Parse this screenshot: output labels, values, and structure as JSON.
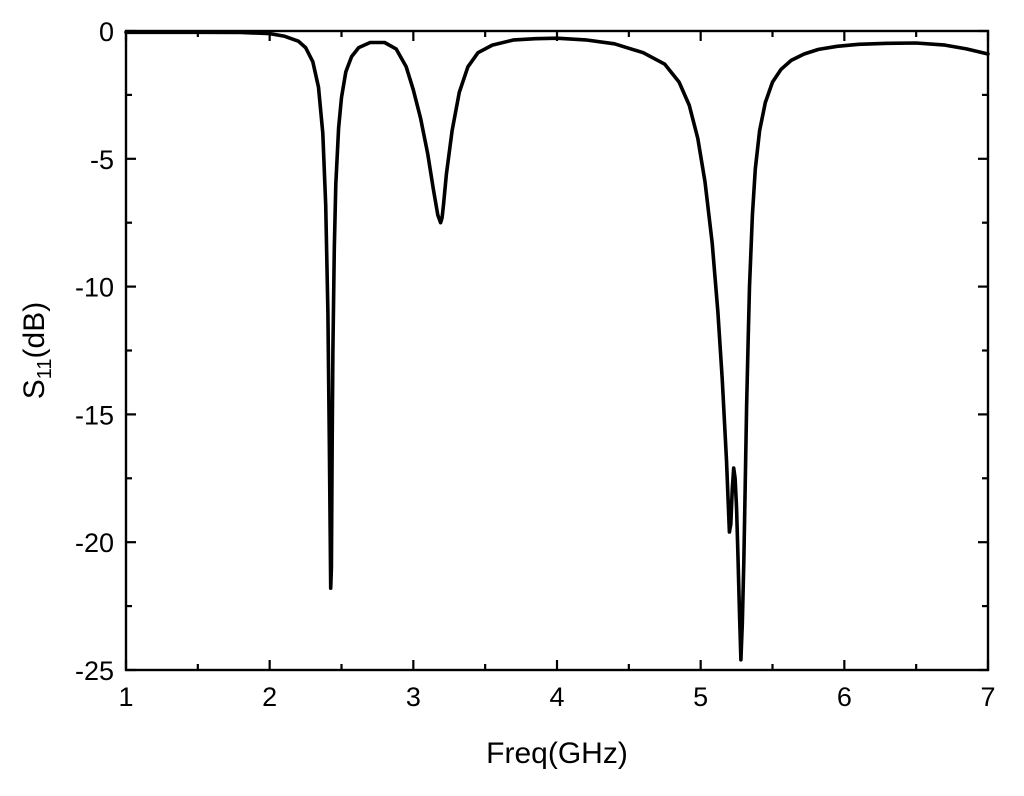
{
  "chart_data": {
    "type": "line",
    "title": "",
    "xlabel": "Freq(GHz)",
    "ylabel": {
      "main": "S",
      "subscript": "11",
      "unit": "(dB)"
    },
    "xlim": [
      1,
      7
    ],
    "ylim": [
      -25,
      0
    ],
    "x_ticks": [
      1,
      2,
      3,
      4,
      5,
      6,
      7
    ],
    "x_tick_labels": [
      "1",
      "2",
      "3",
      "4",
      "5",
      "6",
      "7"
    ],
    "y_ticks": [
      0,
      -5,
      -10,
      -15,
      -20,
      -25
    ],
    "y_tick_labels": [
      "0",
      "-5",
      "-10",
      "-15",
      "-20",
      "-25"
    ],
    "grid": false,
    "line_color": "#000000",
    "series": [
      {
        "x": [
          1.0,
          1.5,
          1.8,
          2.0,
          2.1,
          2.2,
          2.25,
          2.3,
          2.34,
          2.37,
          2.39,
          2.405,
          2.415,
          2.425,
          2.43,
          2.435,
          2.44,
          2.45,
          2.46,
          2.48,
          2.5,
          2.53,
          2.57,
          2.62,
          2.7,
          2.8,
          2.88,
          2.95,
          3.0,
          3.05,
          3.1,
          3.14,
          3.17,
          3.19,
          3.2,
          3.21,
          3.23,
          3.27,
          3.32,
          3.38,
          3.45,
          3.55,
          3.7,
          3.85,
          4.0,
          4.2,
          4.4,
          4.6,
          4.75,
          4.85,
          4.92,
          4.98,
          5.03,
          5.08,
          5.12,
          5.15,
          5.18,
          5.2,
          5.21,
          5.22,
          5.23,
          5.24,
          5.25,
          5.26,
          5.27,
          5.28,
          5.29,
          5.3,
          5.31,
          5.32,
          5.33,
          5.34,
          5.36,
          5.38,
          5.41,
          5.45,
          5.5,
          5.56,
          5.63,
          5.72,
          5.82,
          5.95,
          6.1,
          6.3,
          6.5,
          6.7,
          6.85,
          7.0
        ],
        "y": [
          -0.05,
          -0.05,
          -0.06,
          -0.1,
          -0.2,
          -0.4,
          -0.65,
          -1.2,
          -2.2,
          -4.0,
          -6.8,
          -11.0,
          -16.0,
          -21.8,
          -21.0,
          -16.0,
          -12.5,
          -8.5,
          -6.0,
          -3.8,
          -2.6,
          -1.6,
          -1.0,
          -0.65,
          -0.45,
          -0.45,
          -0.7,
          -1.4,
          -2.3,
          -3.4,
          -4.8,
          -6.2,
          -7.2,
          -7.5,
          -7.3,
          -6.8,
          -5.6,
          -3.9,
          -2.4,
          -1.4,
          -0.85,
          -0.55,
          -0.35,
          -0.3,
          -0.28,
          -0.35,
          -0.5,
          -0.85,
          -1.3,
          -2.0,
          -2.9,
          -4.2,
          -5.9,
          -8.3,
          -11.0,
          -13.6,
          -16.8,
          -19.6,
          -19.3,
          -17.9,
          -17.1,
          -17.5,
          -18.7,
          -20.6,
          -22.8,
          -24.6,
          -23.2,
          -20.8,
          -17.8,
          -14.7,
          -12.2,
          -10.0,
          -7.2,
          -5.4,
          -3.9,
          -2.8,
          -2.0,
          -1.5,
          -1.15,
          -0.9,
          -0.72,
          -0.6,
          -0.52,
          -0.48,
          -0.47,
          -0.55,
          -0.7,
          -0.9
        ]
      }
    ]
  }
}
